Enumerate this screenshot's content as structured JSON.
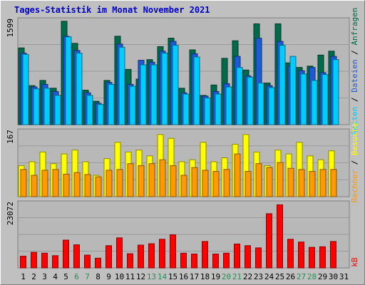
{
  "title": "Tages-Statistik im Monat November 2021",
  "colors": {
    "background": "#c0c0c0",
    "plot_background": "#b8b8b8",
    "gridline": "#9a9a9a",
    "anfragen": "#006a4a",
    "dateien": "#1d5bd6",
    "seiten": "#00ccff",
    "besuche": "#ffff00",
    "rechner": "#ff9900",
    "kb": "#ff0000",
    "weekday_label": "#000000",
    "weekend_label": "#2a8c5a"
  },
  "right_labels": {
    "top": [
      "Anfragen",
      "Dateien",
      "Seiten"
    ],
    "middle": [
      "Besuche",
      "Rechner"
    ],
    "bottom": [
      "kB"
    ],
    "separator": " / "
  },
  "chart_data": [
    {
      "type": "bar",
      "panel": "top",
      "categories": [
        "1",
        "2",
        "3",
        "4",
        "5",
        "6",
        "7",
        "8",
        "9",
        "10",
        "11",
        "12",
        "13",
        "14",
        "15",
        "16",
        "17",
        "18",
        "19",
        "20",
        "21",
        "22",
        "23",
        "24",
        "25",
        "26",
        "27",
        "28",
        "29",
        "30",
        "31"
      ],
      "ytick_label": "1599",
      "ylim": [
        0,
        1599
      ],
      "series": [
        {
          "name": "Anfragen",
          "color": "#006a4a",
          "values": [
            1180,
            600,
            680,
            560,
            1590,
            1250,
            530,
            360,
            680,
            1360,
            850,
            700,
            1000,
            1200,
            1330,
            560,
            1150,
            450,
            610,
            1020,
            1290,
            840,
            1550,
            640,
            1550,
            950,
            880,
            900,
            1070,
            1130,
            0
          ]
        },
        {
          "name": "Dateien",
          "color": "#1d5bd6",
          "values": [
            1100,
            580,
            620,
            510,
            1360,
            1140,
            490,
            330,
            650,
            1240,
            620,
            990,
            960,
            1130,
            1280,
            490,
            1090,
            440,
            510,
            630,
            1050,
            750,
            1330,
            600,
            1280,
            900,
            830,
            880,
            800,
            1050,
            0
          ]
        },
        {
          "name": "Seiten",
          "color": "#00ccff",
          "values": [
            1080,
            550,
            560,
            450,
            1350,
            1100,
            450,
            310,
            620,
            1190,
            590,
            920,
            920,
            1100,
            1220,
            470,
            1040,
            410,
            470,
            580,
            880,
            730,
            640,
            570,
            1220,
            1050,
            780,
            680,
            770,
            1000,
            0
          ]
        }
      ]
    },
    {
      "type": "bar",
      "panel": "middle",
      "categories": [
        "1",
        "2",
        "3",
        "4",
        "5",
        "6",
        "7",
        "8",
        "9",
        "10",
        "11",
        "12",
        "13",
        "14",
        "15",
        "16",
        "17",
        "18",
        "19",
        "20",
        "21",
        "22",
        "23",
        "24",
        "25",
        "26",
        "27",
        "28",
        "29",
        "30",
        "31"
      ],
      "ytick_label": "167",
      "ylim": [
        0,
        167
      ],
      "series": [
        {
          "name": "Besuche",
          "color": "#ffff00",
          "values": [
            80,
            90,
            115,
            85,
            110,
            120,
            90,
            55,
            98,
            140,
            115,
            120,
            105,
            160,
            150,
            90,
            95,
            140,
            90,
            100,
            135,
            160,
            115,
            80,
            120,
            110,
            140,
            105,
            95,
            118,
            0
          ]
        },
        {
          "name": "Rechner",
          "color": "#ff9900",
          "values": [
            70,
            55,
            68,
            70,
            58,
            62,
            57,
            51,
            68,
            70,
            85,
            80,
            85,
            95,
            80,
            55,
            75,
            68,
            65,
            70,
            110,
            65,
            85,
            75,
            88,
            73,
            70,
            65,
            70,
            70,
            0
          ]
        }
      ]
    },
    {
      "type": "bar",
      "panel": "bottom",
      "categories": [
        "1",
        "2",
        "3",
        "4",
        "5",
        "6",
        "7",
        "8",
        "9",
        "10",
        "11",
        "12",
        "13",
        "14",
        "15",
        "16",
        "17",
        "18",
        "19",
        "20",
        "21",
        "22",
        "23",
        "24",
        "25",
        "26",
        "27",
        "28",
        "29",
        "30",
        "31"
      ],
      "ytick_label": "23072",
      "ylim": [
        0,
        23072
      ],
      "series": [
        {
          "name": "kB",
          "color": "#ff0000",
          "values": [
            4200,
            5600,
            5300,
            4400,
            10000,
            8300,
            4600,
            3500,
            8000,
            10800,
            5100,
            8200,
            8700,
            10300,
            11900,
            5300,
            5000,
            9500,
            5000,
            5300,
            8600,
            8000,
            7200,
            19500,
            22700,
            10300,
            9300,
            7400,
            7600,
            9500,
            0
          ]
        }
      ]
    }
  ]
}
